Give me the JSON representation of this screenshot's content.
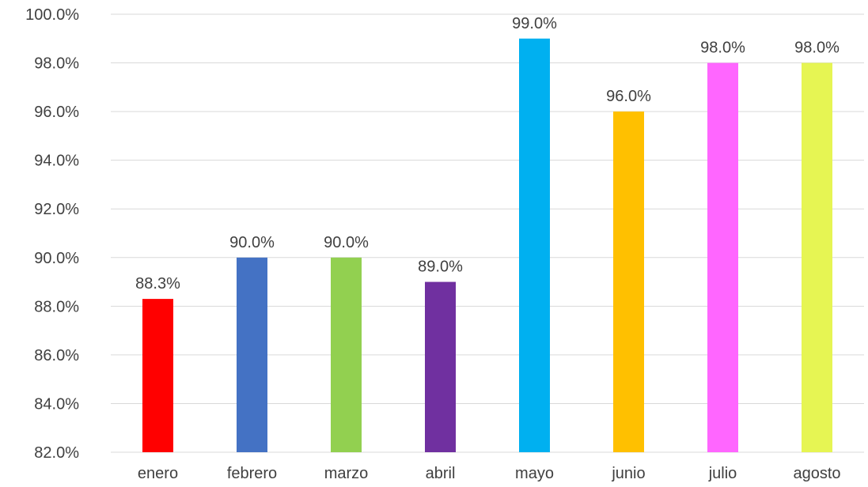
{
  "chart_data": {
    "type": "bar",
    "categories": [
      "enero",
      "febrero",
      "marzo",
      "abril",
      "mayo",
      "junio",
      "julio",
      "agosto"
    ],
    "values": [
      88.3,
      90.0,
      90.0,
      89.0,
      99.0,
      96.0,
      98.0,
      98.0
    ],
    "value_labels": [
      "88.3%",
      "90.0%",
      "90.0%",
      "89.0%",
      "99.0%",
      "96.0%",
      "98.0%",
      "98.0%"
    ],
    "bar_colors": [
      "#ff0000",
      "#4472c4",
      "#92d050",
      "#7030a0",
      "#00b0f0",
      "#ffc000",
      "#ff66ff",
      "#e6f553"
    ],
    "ylim": [
      82,
      100
    ],
    "yticks": [
      82,
      84,
      86,
      88,
      90,
      92,
      94,
      96,
      98,
      100
    ],
    "ytick_labels": [
      "82.0%",
      "84.0%",
      "86.0%",
      "88.0%",
      "90.0%",
      "92.0%",
      "94.0%",
      "96.0%",
      "98.0%",
      "100.0%"
    ],
    "grid": true,
    "gridline_color": "#d9d9d9",
    "label_color": "#404040",
    "title": "",
    "xlabel": "",
    "ylabel": ""
  }
}
